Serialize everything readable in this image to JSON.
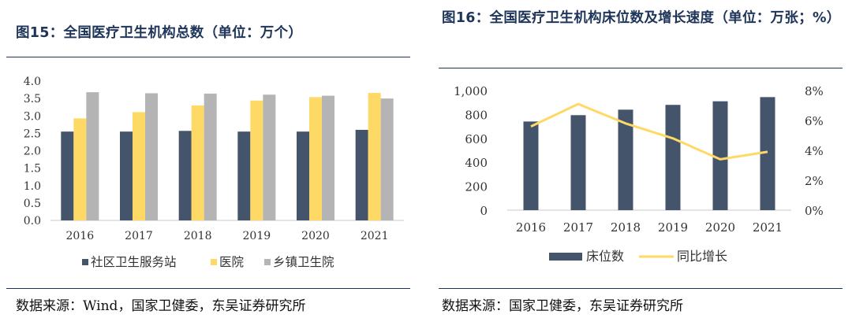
{
  "left": {
    "title": "图15：全国医疗卫生机构总数（单位：万个）",
    "source": "数据来源：Wind，国家卫健委，东吴证券研究所"
  },
  "right": {
    "title": "图16：全国医疗卫生机构床位数及增长速度（单位：万张；%）",
    "source": "数据来源：国家卫健委，东吴证券研究所"
  },
  "colors": {
    "navy": "#44546a",
    "yellow": "#ffd966",
    "gray": "#b4b4b4",
    "line": "#ffd966"
  },
  "chart_data": [
    {
      "type": "bar",
      "categories": [
        "2016",
        "2017",
        "2018",
        "2019",
        "2020",
        "2021"
      ],
      "ylim": [
        0,
        4.0
      ],
      "yticks": [
        "0.0",
        "0.5",
        "1.0",
        "1.5",
        "2.0",
        "2.5",
        "3.0",
        "3.5",
        "4.0"
      ],
      "series": [
        {
          "name": "社区卫生服务站",
          "color": "#44546a",
          "values": [
            2.55,
            2.55,
            2.57,
            2.55,
            2.55,
            2.6
          ]
        },
        {
          "name": "医院",
          "color": "#ffd966",
          "values": [
            2.93,
            3.11,
            3.3,
            3.44,
            3.54,
            3.66
          ]
        },
        {
          "name": "乡镇卫生院",
          "color": "#b4b4b4",
          "values": [
            3.68,
            3.65,
            3.64,
            3.61,
            3.58,
            3.5
          ]
        }
      ],
      "legend": "bottom"
    },
    {
      "type": "bar+line",
      "categories": [
        "2016",
        "2017",
        "2018",
        "2019",
        "2020",
        "2021"
      ],
      "ylim": [
        0,
        1000
      ],
      "yticks": [
        "0",
        "200",
        "400",
        "600",
        "800",
        "1,000"
      ],
      "y2lim": [
        0,
        8
      ],
      "y2ticks": [
        "0%",
        "2%",
        "4%",
        "6%",
        "8%"
      ],
      "series": [
        {
          "name": "床位数",
          "type": "bar",
          "axis": "left",
          "color": "#44546a",
          "values": [
            741,
            794,
            840,
            880,
            910,
            945
          ]
        },
        {
          "name": "同比增长",
          "type": "line",
          "axis": "right",
          "color": "#ffd966",
          "values": [
            5.6,
            7.1,
            5.8,
            4.8,
            3.4,
            3.9
          ]
        }
      ],
      "legend": "bottom"
    }
  ]
}
